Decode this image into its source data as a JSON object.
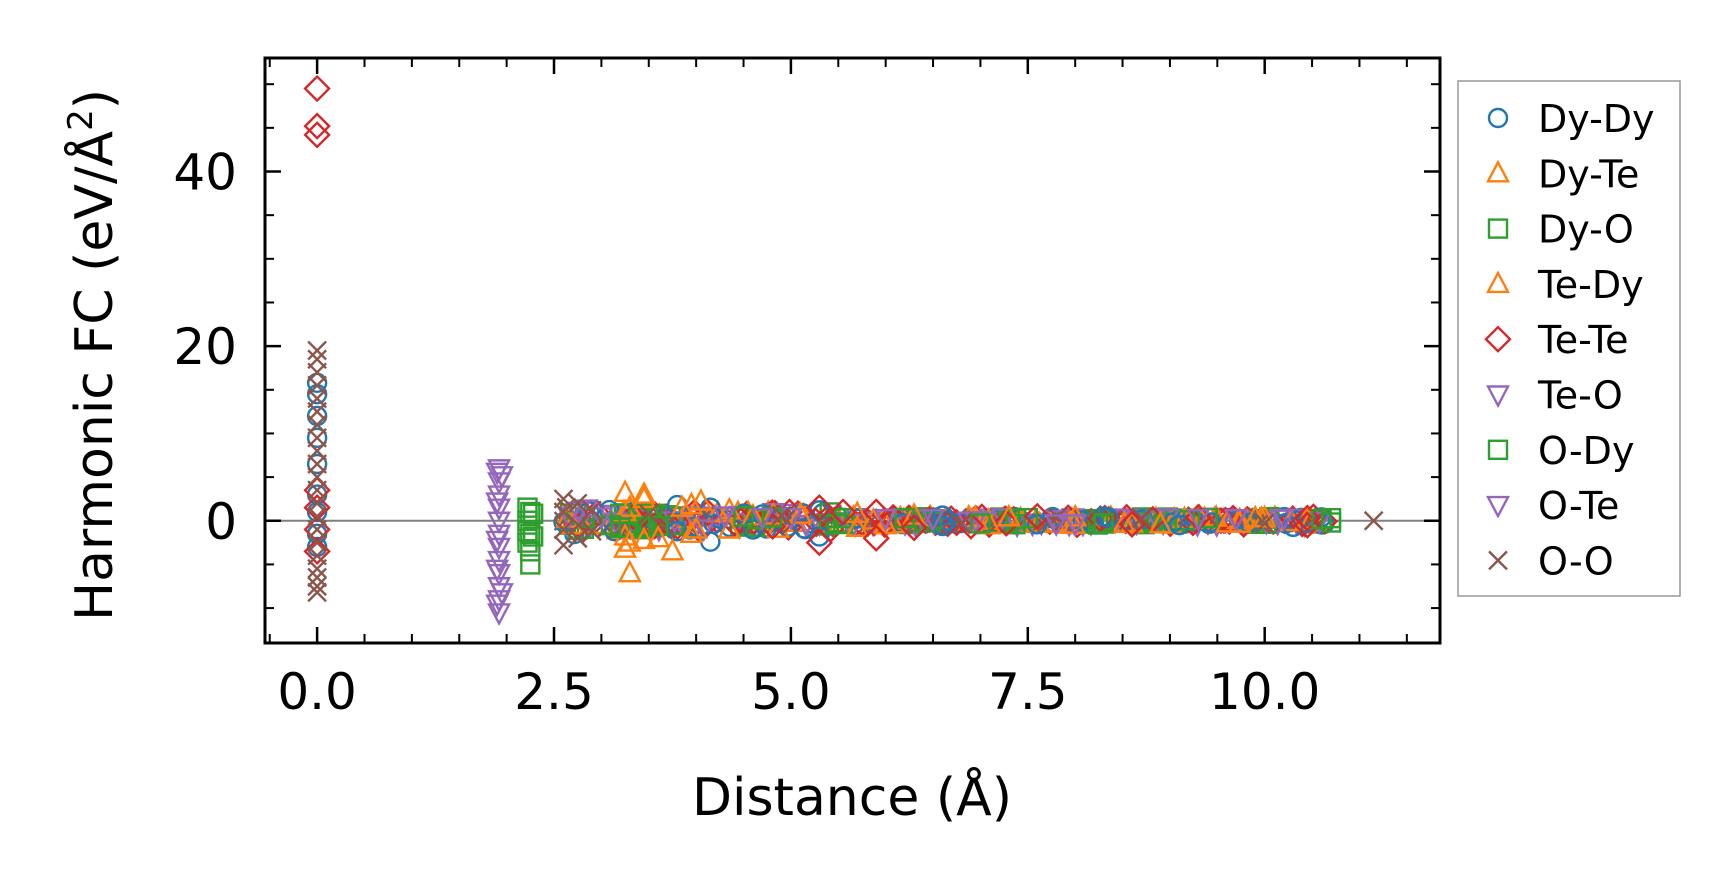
{
  "chart_data": {
    "type": "scatter",
    "title": "",
    "xlabel": "Distance (Å)",
    "ylabel_main": "Harmonic FC (eV/Å",
    "ylabel_sup": "2",
    "ylabel_close": ")",
    "xlim": [
      -0.55,
      11.85
    ],
    "ylim": [
      -14,
      53
    ],
    "xticks": [
      0.0,
      2.5,
      5.0,
      7.5,
      10.0
    ],
    "xtick_labels": [
      "0.0",
      "2.5",
      "5.0",
      "7.5",
      "10.0"
    ],
    "yticks": [
      0,
      20,
      40
    ],
    "ytick_labels": [
      "0",
      "20",
      "40"
    ],
    "reference_line_y": 0,
    "legend_position": "outside-right",
    "series": [
      {
        "name": "Dy-Dy",
        "marker": "circle",
        "color": "#1f77b4",
        "points": [
          [
            0.0,
            15.8
          ],
          [
            0.0,
            14.5
          ],
          [
            0.0,
            12.0
          ],
          [
            0.0,
            9.5
          ],
          [
            0.0,
            6.5
          ],
          [
            0.0,
            3.0
          ],
          [
            0.0,
            1.0
          ],
          [
            0.0,
            -1.5
          ],
          [
            0.0,
            -3.0
          ],
          [
            3.8,
            1.8
          ],
          [
            3.8,
            -1.2
          ],
          [
            4.15,
            -2.4
          ],
          [
            4.15,
            1.5
          ],
          [
            4.6,
            -1.0
          ],
          [
            5.3,
            -1.8
          ],
          [
            5.3,
            1.2
          ],
          [
            6.6,
            -0.6
          ],
          [
            6.6,
            0.6
          ],
          [
            7.6,
            -0.4
          ],
          [
            8.3,
            0.5
          ],
          [
            9.1,
            -0.5
          ],
          [
            10.3,
            -0.7
          ],
          [
            10.6,
            0.4
          ]
        ]
      },
      {
        "name": "Dy-Te",
        "marker": "triangle-up",
        "color": "#ff7f0e",
        "points": [
          [
            3.25,
            3.2
          ],
          [
            3.25,
            1.0
          ],
          [
            3.25,
            -1.8
          ],
          [
            3.25,
            -3.2
          ],
          [
            3.3,
            -6.0
          ],
          [
            3.45,
            2.5
          ],
          [
            3.45,
            -2.2
          ],
          [
            3.75,
            -3.5
          ],
          [
            3.95,
            1.8
          ],
          [
            3.95,
            -1.5
          ],
          [
            4.35,
            1.2
          ],
          [
            4.35,
            -1.0
          ],
          [
            5.7,
            0.8
          ],
          [
            5.7,
            -0.8
          ],
          [
            6.3,
            0.6
          ],
          [
            7.1,
            -0.5
          ],
          [
            8.0,
            0.4
          ],
          [
            8.9,
            -0.4
          ],
          [
            9.6,
            -0.3
          ],
          [
            10.0,
            0.3
          ]
        ]
      },
      {
        "name": "Dy-O",
        "marker": "square",
        "color": "#2ca02c",
        "points": [
          [
            2.25,
            1.0
          ],
          [
            2.25,
            -1.5
          ],
          [
            2.25,
            -3.5
          ],
          [
            2.25,
            -5.0
          ],
          [
            3.2,
            -0.8
          ],
          [
            3.2,
            0.8
          ],
          [
            3.6,
            -0.6
          ],
          [
            4.5,
            0.5
          ],
          [
            5.4,
            -0.4
          ],
          [
            6.2,
            0.3
          ],
          [
            7.5,
            0.3
          ],
          [
            8.3,
            -0.3
          ],
          [
            9.4,
            0.3
          ],
          [
            10.7,
            0.3
          ],
          [
            10.7,
            -0.2
          ]
        ]
      },
      {
        "name": "Te-Dy",
        "marker": "triangle-up",
        "color": "#ff7f0e",
        "points": [
          [
            3.3,
            1.5
          ],
          [
            3.3,
            -2.5
          ],
          [
            3.45,
            3.0
          ],
          [
            3.6,
            -2.0
          ],
          [
            3.85,
            1.5
          ],
          [
            4.0,
            -1.0
          ],
          [
            4.05,
            2.2
          ],
          [
            5.1,
            0.7
          ],
          [
            6.0,
            -0.5
          ],
          [
            7.3,
            0.4
          ],
          [
            8.6,
            -0.3
          ],
          [
            9.9,
            0.3
          ]
        ]
      },
      {
        "name": "Te-Te",
        "marker": "diamond",
        "color": "#d62728",
        "points": [
          [
            0.0,
            49.5
          ],
          [
            0.0,
            45.2
          ],
          [
            0.0,
            44.2
          ],
          [
            0.0,
            3.5
          ],
          [
            0.0,
            1.5
          ],
          [
            0.0,
            -1.0
          ],
          [
            0.0,
            -3.5
          ],
          [
            5.3,
            1.5
          ],
          [
            5.3,
            -2.5
          ],
          [
            5.55,
            1.0
          ],
          [
            5.9,
            -2.0
          ],
          [
            5.9,
            1.0
          ],
          [
            6.3,
            -0.8
          ],
          [
            6.9,
            -0.6
          ],
          [
            7.6,
            0.5
          ],
          [
            8.6,
            -0.4
          ],
          [
            9.3,
            0.4
          ],
          [
            10.45,
            -0.5
          ],
          [
            10.45,
            0.3
          ]
        ]
      },
      {
        "name": "Te-O",
        "marker": "triangle-down",
        "color": "#9467bd",
        "points": [
          [
            1.92,
            6.0
          ],
          [
            1.92,
            4.5
          ],
          [
            1.92,
            3.0
          ],
          [
            1.92,
            1.5
          ],
          [
            1.92,
            0.0
          ],
          [
            1.92,
            -1.5
          ],
          [
            1.92,
            -3.0
          ],
          [
            1.92,
            -4.5
          ],
          [
            1.92,
            -6.0
          ],
          [
            1.92,
            -7.5
          ],
          [
            1.92,
            -9.0
          ],
          [
            1.92,
            -10.5
          ],
          [
            1.95,
            5.2
          ],
          [
            1.95,
            -8.2
          ],
          [
            4.3,
            0.6
          ],
          [
            5.0,
            0.4
          ],
          [
            6.5,
            0.3
          ],
          [
            8.0,
            -0.3
          ],
          [
            9.3,
            0.3
          ],
          [
            10.2,
            0.3
          ]
        ]
      },
      {
        "name": "O-Dy",
        "marker": "square",
        "color": "#2ca02c",
        "points": [
          [
            2.22,
            1.5
          ],
          [
            2.22,
            0.0
          ],
          [
            2.22,
            -1.2
          ],
          [
            2.22,
            -2.5
          ],
          [
            2.28,
            0.8
          ],
          [
            2.28,
            -1.8
          ],
          [
            3.1,
            -0.5
          ],
          [
            4.8,
            0.4
          ],
          [
            7.0,
            -0.3
          ],
          [
            10.6,
            0.2
          ]
        ]
      },
      {
        "name": "O-Te",
        "marker": "triangle-down",
        "color": "#9467bd",
        "points": [
          [
            1.9,
            5.6
          ],
          [
            1.9,
            2.2
          ],
          [
            1.9,
            -2.2
          ],
          [
            1.9,
            -5.5
          ],
          [
            1.9,
            -9.5
          ],
          [
            3.0,
            0.5
          ],
          [
            4.7,
            0.4
          ],
          [
            6.0,
            0.3
          ],
          [
            7.8,
            -0.3
          ],
          [
            9.7,
            0.3
          ]
        ]
      },
      {
        "name": "O-O",
        "marker": "x",
        "color": "#8c564b",
        "points": [
          [
            0.0,
            19.5
          ],
          [
            0.0,
            18.5
          ],
          [
            0.0,
            17.0
          ],
          [
            0.0,
            15.5
          ],
          [
            0.0,
            14.0
          ],
          [
            0.0,
            12.5
          ],
          [
            0.0,
            11.0
          ],
          [
            0.0,
            9.5
          ],
          [
            0.0,
            8.0
          ],
          [
            0.0,
            6.5
          ],
          [
            0.0,
            5.0
          ],
          [
            0.0,
            3.5
          ],
          [
            0.0,
            2.0
          ],
          [
            0.0,
            0.5
          ],
          [
            0.0,
            -1.0
          ],
          [
            0.0,
            -2.5
          ],
          [
            0.0,
            -4.0
          ],
          [
            0.0,
            -5.5
          ],
          [
            0.0,
            -6.5
          ],
          [
            0.0,
            -7.5
          ],
          [
            0.0,
            -8.2
          ],
          [
            2.6,
            2.5
          ],
          [
            2.6,
            1.0
          ],
          [
            2.6,
            -1.0
          ],
          [
            2.6,
            -2.8
          ],
          [
            2.75,
            2.0
          ],
          [
            2.75,
            -2.0
          ],
          [
            2.9,
            1.2
          ],
          [
            2.9,
            -1.2
          ],
          [
            3.5,
            0.8
          ],
          [
            4.9,
            0.6
          ],
          [
            6.8,
            -0.4
          ],
          [
            8.7,
            0.3
          ],
          [
            10.0,
            -0.3
          ],
          [
            11.15,
            0.0
          ]
        ]
      }
    ]
  }
}
